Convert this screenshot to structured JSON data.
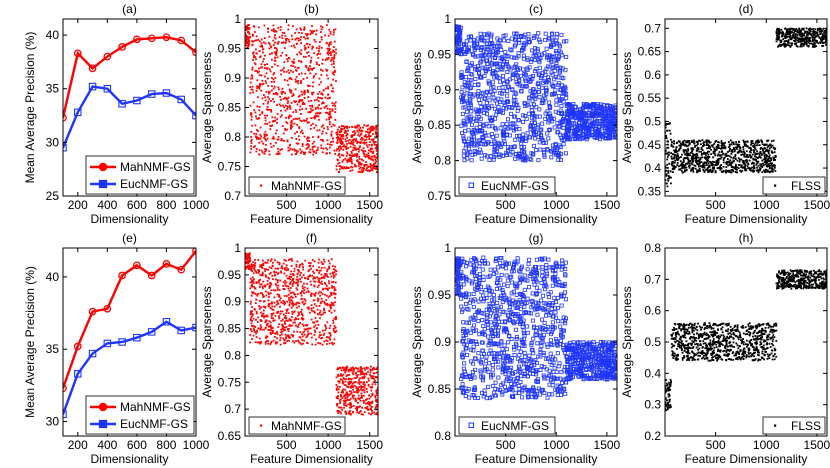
{
  "colors": {
    "mah": "#ff0000",
    "euc": "#1f35ff",
    "flss": "#000000",
    "axis": "#000000"
  },
  "chart_data": [
    {
      "id": "a",
      "title": "(a)",
      "type": "line",
      "xlabel": "Dimensionality",
      "ylabel": "Mean Average Precision (%)",
      "xlim": [
        100,
        1000
      ],
      "ylim": [
        25,
        41.5
      ],
      "xticks": [
        200,
        400,
        600,
        800,
        1000
      ],
      "yticks": [
        25,
        30,
        35,
        40
      ],
      "x": [
        100,
        200,
        300,
        400,
        500,
        600,
        700,
        800,
        900,
        1000
      ],
      "series": [
        {
          "name": "MahNMF-GS",
          "color": "mah",
          "marker": "circle",
          "values": [
            32.3,
            38.3,
            36.9,
            38.0,
            38.9,
            39.6,
            39.7,
            39.8,
            39.5,
            38.4
          ]
        },
        {
          "name": "EucNMF-GS",
          "color": "euc",
          "marker": "square",
          "values": [
            29.5,
            32.8,
            35.2,
            35.0,
            33.6,
            33.9,
            34.5,
            34.6,
            34.0,
            32.5
          ]
        }
      ],
      "legend": "bottom-right"
    },
    {
      "id": "b",
      "title": "(b)",
      "type": "scatter",
      "xlabel": "Feature Dimensionality",
      "ylabel": "Average Sparseness",
      "xlim": [
        0,
        1600
      ],
      "ylim": [
        0.7,
        1.0
      ],
      "xticks": [
        500,
        1000,
        1500
      ],
      "yticks": [
        0.7,
        0.75,
        0.8,
        0.85,
        0.9,
        0.95,
        1
      ],
      "series": [
        {
          "name": "MahNMF-GS",
          "color": "mah",
          "marker": "dot",
          "segments": [
            {
              "x": [
                1,
                60
              ],
              "y": [
                0.95,
                0.99
              ],
              "n": 60
            },
            {
              "x": [
                60,
                1100
              ],
              "y": [
                0.77,
                0.99
              ],
              "n": 900
            },
            {
              "x": [
                1100,
                1600
              ],
              "y": [
                0.74,
                0.82
              ],
              "n": 400
            }
          ]
        }
      ],
      "legend": "bottom-left"
    },
    {
      "id": "c",
      "title": "(c)",
      "type": "scatter",
      "xlabel": "Feature Dimensionality",
      "ylabel": "Average Sparseness",
      "xlim": [
        0,
        1600
      ],
      "ylim": [
        0.75,
        1.0
      ],
      "xticks": [
        500,
        1000,
        1500
      ],
      "yticks": [
        0.75,
        0.8,
        0.85,
        0.9,
        0.95,
        1
      ],
      "series": [
        {
          "name": "EucNMF-GS",
          "color": "euc",
          "marker": "square",
          "segments": [
            {
              "x": [
                1,
                60
              ],
              "y": [
                0.95,
                0.99
              ],
              "n": 60
            },
            {
              "x": [
                60,
                1100
              ],
              "y": [
                0.8,
                0.98
              ],
              "n": 900
            },
            {
              "x": [
                1100,
                1600
              ],
              "y": [
                0.83,
                0.88
              ],
              "n": 400
            }
          ]
        }
      ],
      "legend": "bottom-left"
    },
    {
      "id": "d",
      "title": "(d)",
      "type": "scatter",
      "xlabel": "Feature Dimensionality",
      "ylabel": "Average Sparseness",
      "xlim": [
        0,
        1600
      ],
      "ylim": [
        0.34,
        0.72
      ],
      "xticks": [
        500,
        1000,
        1500
      ],
      "yticks": [
        0.35,
        0.4,
        0.45,
        0.5,
        0.55,
        0.6,
        0.65,
        0.7
      ],
      "series": [
        {
          "name": "FLSS",
          "color": "flss",
          "marker": "dot",
          "segments": [
            {
              "x": [
                1,
                60
              ],
              "y": [
                0.36,
                0.5
              ],
              "n": 60
            },
            {
              "x": [
                60,
                1100
              ],
              "y": [
                0.39,
                0.46
              ],
              "n": 900
            },
            {
              "x": [
                1100,
                1600
              ],
              "y": [
                0.66,
                0.7
              ],
              "n": 400
            }
          ]
        }
      ],
      "legend": "bottom-right"
    },
    {
      "id": "e",
      "title": "(e)",
      "type": "line",
      "xlabel": "Dimensionality",
      "ylabel": "Mean Average Precision (%)",
      "xlim": [
        100,
        1000
      ],
      "ylim": [
        29,
        42
      ],
      "xticks": [
        200,
        400,
        600,
        800,
        1000
      ],
      "yticks": [
        30,
        35,
        40
      ],
      "x": [
        100,
        200,
        300,
        400,
        500,
        600,
        700,
        800,
        900,
        1000
      ],
      "series": [
        {
          "name": "MahNMF-GS",
          "color": "mah",
          "marker": "circle",
          "values": [
            32.3,
            35.2,
            37.6,
            37.8,
            40.1,
            40.8,
            40.1,
            40.9,
            40.5,
            41.8
          ]
        },
        {
          "name": "EucNMF-GS",
          "color": "euc",
          "marker": "square",
          "values": [
            30.5,
            33.3,
            34.7,
            35.4,
            35.5,
            35.8,
            36.2,
            36.9,
            36.3,
            36.5
          ]
        }
      ],
      "legend": "bottom-right"
    },
    {
      "id": "f",
      "title": "(f)",
      "type": "scatter",
      "xlabel": "Feature Dimensionality",
      "ylabel": "Average Sparseness",
      "xlim": [
        0,
        1600
      ],
      "ylim": [
        0.65,
        1.0
      ],
      "xticks": [
        500,
        1000,
        1500
      ],
      "yticks": [
        0.65,
        0.7,
        0.75,
        0.8,
        0.85,
        0.9,
        0.95,
        1
      ],
      "series": [
        {
          "name": "MahNMF-GS",
          "color": "mah",
          "marker": "dot",
          "segments": [
            {
              "x": [
                1,
                60
              ],
              "y": [
                0.96,
                0.99
              ],
              "n": 60
            },
            {
              "x": [
                60,
                1100
              ],
              "y": [
                0.82,
                0.98
              ],
              "n": 900
            },
            {
              "x": [
                1100,
                1600
              ],
              "y": [
                0.69,
                0.78
              ],
              "n": 400
            }
          ]
        }
      ],
      "legend": "bottom-left"
    },
    {
      "id": "g",
      "title": "(g)",
      "type": "scatter",
      "xlabel": "Feature Dimensionality",
      "ylabel": "Average Sparseness",
      "xlim": [
        0,
        1600
      ],
      "ylim": [
        0.8,
        1.0
      ],
      "xticks": [
        500,
        1000,
        1500
      ],
      "yticks": [
        0.8,
        0.85,
        0.9,
        0.95,
        1
      ],
      "series": [
        {
          "name": "EucNMF-GS",
          "color": "euc",
          "marker": "square",
          "segments": [
            {
              "x": [
                1,
                60
              ],
              "y": [
                0.95,
                0.99
              ],
              "n": 60
            },
            {
              "x": [
                60,
                1100
              ],
              "y": [
                0.84,
                0.99
              ],
              "n": 900
            },
            {
              "x": [
                1100,
                1600
              ],
              "y": [
                0.86,
                0.9
              ],
              "n": 400
            }
          ]
        }
      ],
      "legend": "bottom-left"
    },
    {
      "id": "h",
      "title": "(h)",
      "type": "scatter",
      "xlabel": "Feature Dimensionality",
      "ylabel": "Average Sparseness",
      "xlim": [
        0,
        1600
      ],
      "ylim": [
        0.2,
        0.8
      ],
      "xticks": [
        500,
        1000,
        1500
      ],
      "yticks": [
        0.2,
        0.3,
        0.4,
        0.5,
        0.6,
        0.7,
        0.8
      ],
      "series": [
        {
          "name": "FLSS",
          "color": "flss",
          "marker": "dot",
          "segments": [
            {
              "x": [
                1,
                60
              ],
              "y": [
                0.28,
                0.38
              ],
              "n": 60
            },
            {
              "x": [
                60,
                1100
              ],
              "y": [
                0.44,
                0.56
              ],
              "n": 900
            },
            {
              "x": [
                1100,
                1600
              ],
              "y": [
                0.67,
                0.73
              ],
              "n": 400
            }
          ]
        }
      ],
      "legend": "bottom-right"
    }
  ]
}
